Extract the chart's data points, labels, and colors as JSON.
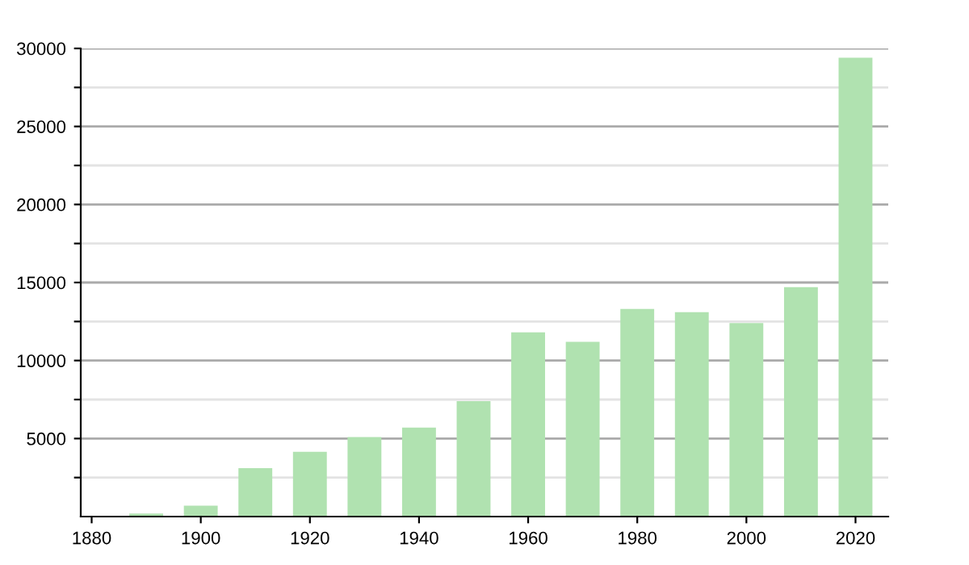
{
  "chart_data": {
    "type": "bar",
    "x": [
      1890,
      1900,
      1910,
      1920,
      1930,
      1940,
      1950,
      1960,
      1970,
      1980,
      1990,
      2000,
      2010,
      2020
    ],
    "values": [
      200,
      700,
      3100,
      4150,
      5100,
      5700,
      7400,
      11800,
      11200,
      13300,
      13100,
      12400,
      14700,
      29400
    ],
    "color": "#b0e2b0",
    "xlim": [
      1878,
      2026
    ],
    "xticks": [
      1880,
      1900,
      1920,
      1940,
      1960,
      1980,
      2000,
      2020
    ],
    "ylim": [
      0,
      30000
    ],
    "yticks": [
      {
        "value": 2500,
        "label": null
      },
      5000,
      {
        "value": 7500,
        "label": null
      },
      10000,
      {
        "value": 12500,
        "label": null
      },
      15000,
      {
        "value": 17500,
        "label": null
      },
      20000,
      {
        "value": 22500,
        "label": null
      },
      25000,
      {
        "value": 27500,
        "label": null
      },
      30000
    ],
    "grid": "y"
  }
}
